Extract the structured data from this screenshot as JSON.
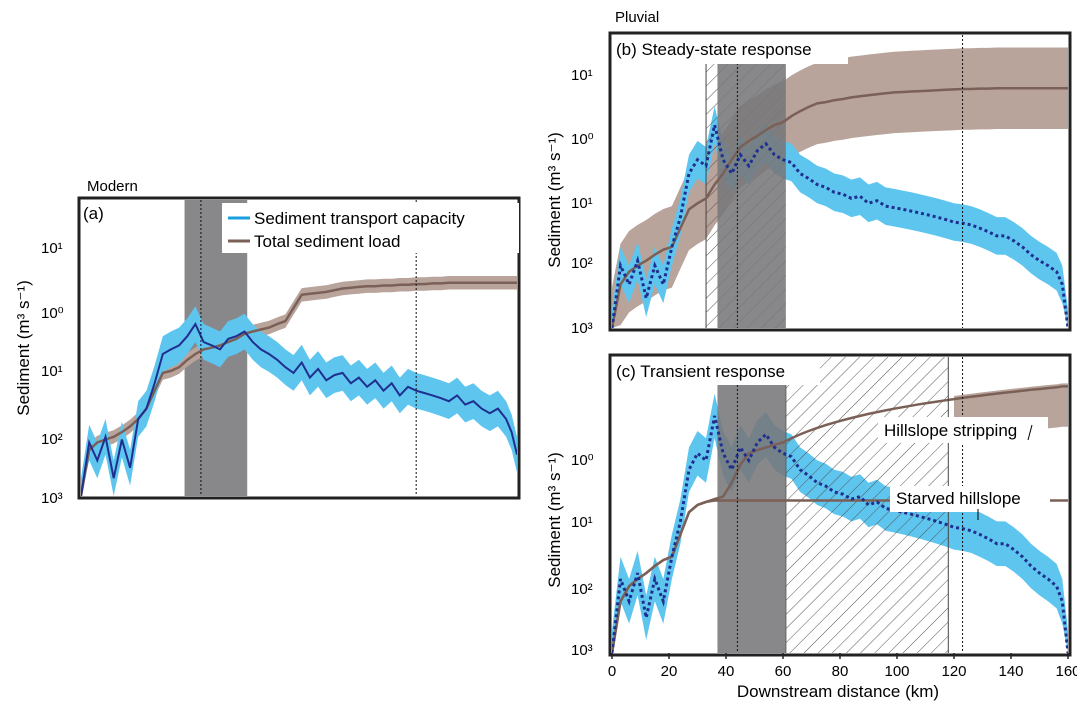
{
  "chart_data": [
    {
      "id": "a",
      "type": "line",
      "period_label": "Modern",
      "panel_label": "(a)",
      "xlabel": "",
      "ylabel": "Sediment (m³ s⁻¹)",
      "y_scale": "log",
      "ylim": [
        0.001,
        100
      ],
      "xlim": [
        0,
        160
      ],
      "y_ticks": [
        "10³",
        "10²",
        "10¹",
        "10⁰",
        "10¹"
      ],
      "legend": {
        "placement": "top-right",
        "entries": [
          {
            "name": "Sediment transport capacity",
            "color": "#1aa0e0"
          },
          {
            "name": "Total sediment load",
            "color": "#7a6056"
          }
        ]
      },
      "shaded_region_km": [
        38,
        61
      ],
      "dotted_lines_km": [
        44,
        123
      ],
      "series": [
        {
          "name": "Sediment transport capacity",
          "style": "solid",
          "x": [
            0,
            3,
            6,
            9,
            12,
            15,
            18,
            21,
            24,
            27,
            30,
            33,
            36,
            39,
            42,
            45,
            48,
            51,
            54,
            57,
            60,
            63,
            66,
            69,
            72,
            75,
            78,
            81,
            84,
            87,
            90,
            93,
            96,
            99,
            102,
            105,
            108,
            111,
            114,
            117,
            120,
            123,
            126,
            129,
            132,
            135,
            138,
            141,
            144,
            147,
            150,
            153,
            156,
            158,
            160
          ],
          "values": [
            0.001,
            0.008,
            0.004,
            0.01,
            0.002,
            0.009,
            0.003,
            0.02,
            0.03,
            0.08,
            0.25,
            0.3,
            0.35,
            0.5,
            0.8,
            0.4,
            0.35,
            0.3,
            0.45,
            0.5,
            0.6,
            0.4,
            0.3,
            0.25,
            0.2,
            0.15,
            0.12,
            0.18,
            0.1,
            0.14,
            0.09,
            0.11,
            0.12,
            0.08,
            0.1,
            0.07,
            0.09,
            0.06,
            0.08,
            0.05,
            0.07,
            0.06,
            0.055,
            0.05,
            0.045,
            0.04,
            0.05,
            0.035,
            0.04,
            0.03,
            0.025,
            0.03,
            0.02,
            0.012,
            0.005
          ],
          "band_factor": 2.0
        },
        {
          "name": "Total sediment load",
          "style": "solid",
          "x": [
            0,
            3,
            6,
            9,
            12,
            15,
            18,
            21,
            24,
            27,
            30,
            33,
            36,
            39,
            42,
            45,
            48,
            51,
            54,
            57,
            60,
            63,
            66,
            69,
            72,
            75,
            78,
            81,
            84,
            87,
            90,
            93,
            96,
            99,
            102,
            105,
            108,
            111,
            114,
            117,
            120,
            123,
            126,
            129,
            132,
            135,
            138,
            141,
            144,
            147,
            150,
            153,
            156,
            158,
            160
          ],
          "values": [
            0.001,
            0.006,
            0.008,
            0.009,
            0.01,
            0.012,
            0.015,
            0.02,
            0.03,
            0.06,
            0.12,
            0.13,
            0.15,
            0.2,
            0.25,
            0.3,
            0.32,
            0.35,
            0.4,
            0.45,
            0.55,
            0.6,
            0.65,
            0.7,
            0.8,
            0.9,
            1.5,
            2.5,
            2.6,
            2.7,
            2.8,
            3.0,
            3.2,
            3.3,
            3.4,
            3.5,
            3.5,
            3.6,
            3.6,
            3.7,
            3.7,
            3.8,
            3.8,
            3.9,
            3.9,
            4.0,
            4.0,
            4.0,
            4.0,
            4.0,
            4.0,
            4.0,
            4.0,
            4.0,
            4.0
          ],
          "band_factor": 1.3
        }
      ]
    },
    {
      "id": "b",
      "type": "line",
      "period_label": "Pluvial",
      "panel_label": "(b) Steady-state response",
      "xlabel": "",
      "ylabel": "Sediment (m³ s⁻¹)",
      "y_scale": "log",
      "ylim": [
        0.001,
        50
      ],
      "xlim": [
        0,
        160
      ],
      "y_ticks": [
        "10³",
        "10²",
        "10¹",
        "10⁰",
        "10¹"
      ],
      "hatched_region_km": [
        33,
        61
      ],
      "shaded_region_km": [
        37,
        61
      ],
      "dotted_lines_km": [
        44,
        123
      ],
      "series": [
        {
          "name": "Sediment transport capacity",
          "style": "dotted",
          "x": [
            0,
            3,
            6,
            9,
            12,
            15,
            18,
            21,
            24,
            27,
            30,
            33,
            36,
            39,
            42,
            45,
            48,
            51,
            54,
            57,
            60,
            63,
            66,
            69,
            72,
            75,
            78,
            81,
            84,
            87,
            90,
            93,
            96,
            99,
            102,
            105,
            108,
            111,
            114,
            117,
            120,
            123,
            126,
            129,
            132,
            135,
            138,
            141,
            144,
            147,
            150,
            153,
            156,
            158,
            160
          ],
          "values": [
            0.001,
            0.01,
            0.005,
            0.012,
            0.003,
            0.01,
            0.005,
            0.02,
            0.06,
            0.3,
            0.5,
            0.4,
            1.8,
            0.5,
            0.3,
            0.6,
            0.4,
            0.7,
            0.9,
            0.6,
            0.5,
            0.45,
            0.3,
            0.25,
            0.2,
            0.18,
            0.15,
            0.14,
            0.12,
            0.13,
            0.1,
            0.11,
            0.09,
            0.085,
            0.08,
            0.075,
            0.07,
            0.065,
            0.06,
            0.055,
            0.05,
            0.048,
            0.045,
            0.04,
            0.035,
            0.03,
            0.03,
            0.025,
            0.02,
            0.015,
            0.012,
            0.01,
            0.008,
            0.005,
            0.001
          ],
          "band_factor": 2.0
        },
        {
          "name": "Total sediment load",
          "style": "solid",
          "x": [
            0,
            3,
            6,
            9,
            12,
            15,
            18,
            21,
            24,
            27,
            30,
            33,
            36,
            39,
            42,
            45,
            48,
            51,
            54,
            57,
            60,
            63,
            66,
            69,
            72,
            75,
            78,
            81,
            84,
            87,
            90,
            93,
            96,
            99,
            102,
            105,
            108,
            111,
            114,
            117,
            120,
            123,
            126,
            129,
            132,
            135,
            138,
            141,
            144,
            147,
            150,
            153,
            156,
            158,
            160
          ],
          "values": [
            0.001,
            0.005,
            0.008,
            0.01,
            0.012,
            0.015,
            0.018,
            0.02,
            0.04,
            0.08,
            0.1,
            0.12,
            0.2,
            0.3,
            0.5,
            0.8,
            1.0,
            1.2,
            1.5,
            1.8,
            2.0,
            2.5,
            3.0,
            3.5,
            4.0,
            4.2,
            4.5,
            4.7,
            5.0,
            5.2,
            5.4,
            5.6,
            5.8,
            6.0,
            6.1,
            6.2,
            6.3,
            6.4,
            6.5,
            6.6,
            6.7,
            6.8,
            6.8,
            6.9,
            6.9,
            7.0,
            7.0,
            7.0,
            7.0,
            7.0,
            7.0,
            7.0,
            7.0,
            7.0,
            7.0
          ],
          "band_factor": 4.5
        }
      ]
    },
    {
      "id": "c",
      "type": "line",
      "period_label": "",
      "panel_label": "(c) Transient response",
      "xlabel": "Downstream distance (km)",
      "ylabel": "Sediment (m³ s⁻¹)",
      "y_scale": "log",
      "ylim": [
        0.001,
        10
      ],
      "xlim": [
        0,
        160
      ],
      "x_ticks": [
        "0",
        "20",
        "40",
        "60",
        "80",
        "100",
        "120",
        "140",
        "160"
      ],
      "y_ticks": [
        "10³",
        "10²",
        "10¹",
        "10⁰"
      ],
      "hatched_region_km": [
        61,
        118
      ],
      "shaded_region_km": [
        37,
        61
      ],
      "solid_lines_km": [
        118
      ],
      "dotted_lines_km": [
        44,
        123
      ],
      "annotations": [
        "Hillslope stripping",
        "Starved hillslope"
      ],
      "series": [
        {
          "name": "Sediment transport capacity",
          "style": "dotted",
          "x": [
            0,
            3,
            6,
            9,
            12,
            15,
            18,
            21,
            24,
            27,
            30,
            33,
            36,
            39,
            42,
            45,
            48,
            51,
            54,
            57,
            60,
            63,
            66,
            69,
            72,
            75,
            78,
            81,
            84,
            87,
            90,
            93,
            96,
            99,
            102,
            105,
            108,
            111,
            114,
            117,
            120,
            123,
            126,
            129,
            132,
            135,
            138,
            141,
            144,
            147,
            150,
            153,
            156,
            158,
            160
          ],
          "values": [
            0.001,
            0.01,
            0.005,
            0.012,
            0.003,
            0.01,
            0.005,
            0.02,
            0.06,
            0.3,
            0.5,
            0.4,
            1.6,
            0.5,
            0.3,
            0.6,
            0.4,
            0.7,
            0.9,
            0.6,
            0.5,
            0.45,
            0.3,
            0.25,
            0.2,
            0.18,
            0.15,
            0.14,
            0.12,
            0.13,
            0.1,
            0.11,
            0.09,
            0.085,
            0.08,
            0.075,
            0.07,
            0.065,
            0.06,
            0.055,
            0.05,
            0.048,
            0.045,
            0.04,
            0.035,
            0.03,
            0.03,
            0.025,
            0.02,
            0.015,
            0.012,
            0.01,
            0.008,
            0.005,
            0.001
          ],
          "band_factor": 2.0
        },
        {
          "name": "Total sediment load (hillslope stripping)",
          "style": "solid",
          "x": [
            0,
            3,
            6,
            9,
            12,
            15,
            18,
            21,
            24,
            27,
            30,
            33,
            36,
            39,
            42,
            45,
            48,
            51,
            54,
            57,
            60,
            63,
            66,
            69,
            72,
            75,
            78,
            81,
            84,
            87,
            90,
            93,
            96,
            99,
            102,
            105,
            108,
            111,
            114,
            117,
            120,
            123,
            126,
            129,
            132,
            135,
            138,
            141,
            144,
            147,
            150,
            153,
            156,
            158,
            160
          ],
          "values": [
            0.001,
            0.005,
            0.008,
            0.01,
            0.012,
            0.015,
            0.018,
            0.02,
            0.04,
            0.08,
            0.1,
            0.11,
            0.12,
            0.13,
            0.2,
            0.35,
            0.5,
            0.55,
            0.6,
            0.65,
            0.7,
            0.8,
            0.9,
            1.0,
            1.1,
            1.2,
            1.3,
            1.4,
            1.5,
            1.6,
            1.7,
            1.8,
            1.9,
            2.0,
            2.1,
            2.2,
            2.3,
            2.4,
            2.5,
            2.6,
            2.7,
            2.8,
            2.9,
            3.0,
            3.1,
            3.2,
            3.3,
            3.4,
            3.5,
            3.6,
            3.7,
            3.8,
            3.9,
            4.0,
            4.0
          ],
          "band_upper_factor": 1.1,
          "band_lower_factor": 3.5,
          "band_from_km": 118
        },
        {
          "name": "Total sediment load (starved hillslope)",
          "style": "solid",
          "x": [
            0,
            3,
            6,
            9,
            12,
            15,
            18,
            21,
            24,
            27,
            30,
            33,
            36,
            39,
            42,
            45,
            48,
            51,
            54,
            57,
            60,
            63,
            66,
            69,
            72,
            75,
            78,
            81,
            84,
            87,
            90,
            93,
            96,
            99,
            102,
            105,
            108,
            111,
            114,
            117,
            120,
            123,
            126,
            129,
            132,
            135,
            138,
            141,
            144,
            147,
            150,
            153,
            156,
            158,
            160
          ],
          "values": [
            0.001,
            0.005,
            0.008,
            0.01,
            0.012,
            0.015,
            0.018,
            0.02,
            0.04,
            0.08,
            0.1,
            0.11,
            0.115,
            0.115,
            0.115,
            0.115,
            0.115,
            0.115,
            0.115,
            0.115,
            0.115,
            0.115,
            0.115,
            0.115,
            0.115,
            0.115,
            0.115,
            0.115,
            0.115,
            0.115,
            0.115,
            0.115,
            0.115,
            0.115,
            0.115,
            0.115,
            0.115,
            0.115,
            0.115,
            0.115,
            0.115,
            0.115,
            0.115,
            0.115,
            0.115,
            0.115,
            0.115,
            0.115,
            0.115,
            0.115,
            0.115,
            0.115,
            0.115,
            0.115,
            0.115
          ]
        }
      ]
    }
  ]
}
